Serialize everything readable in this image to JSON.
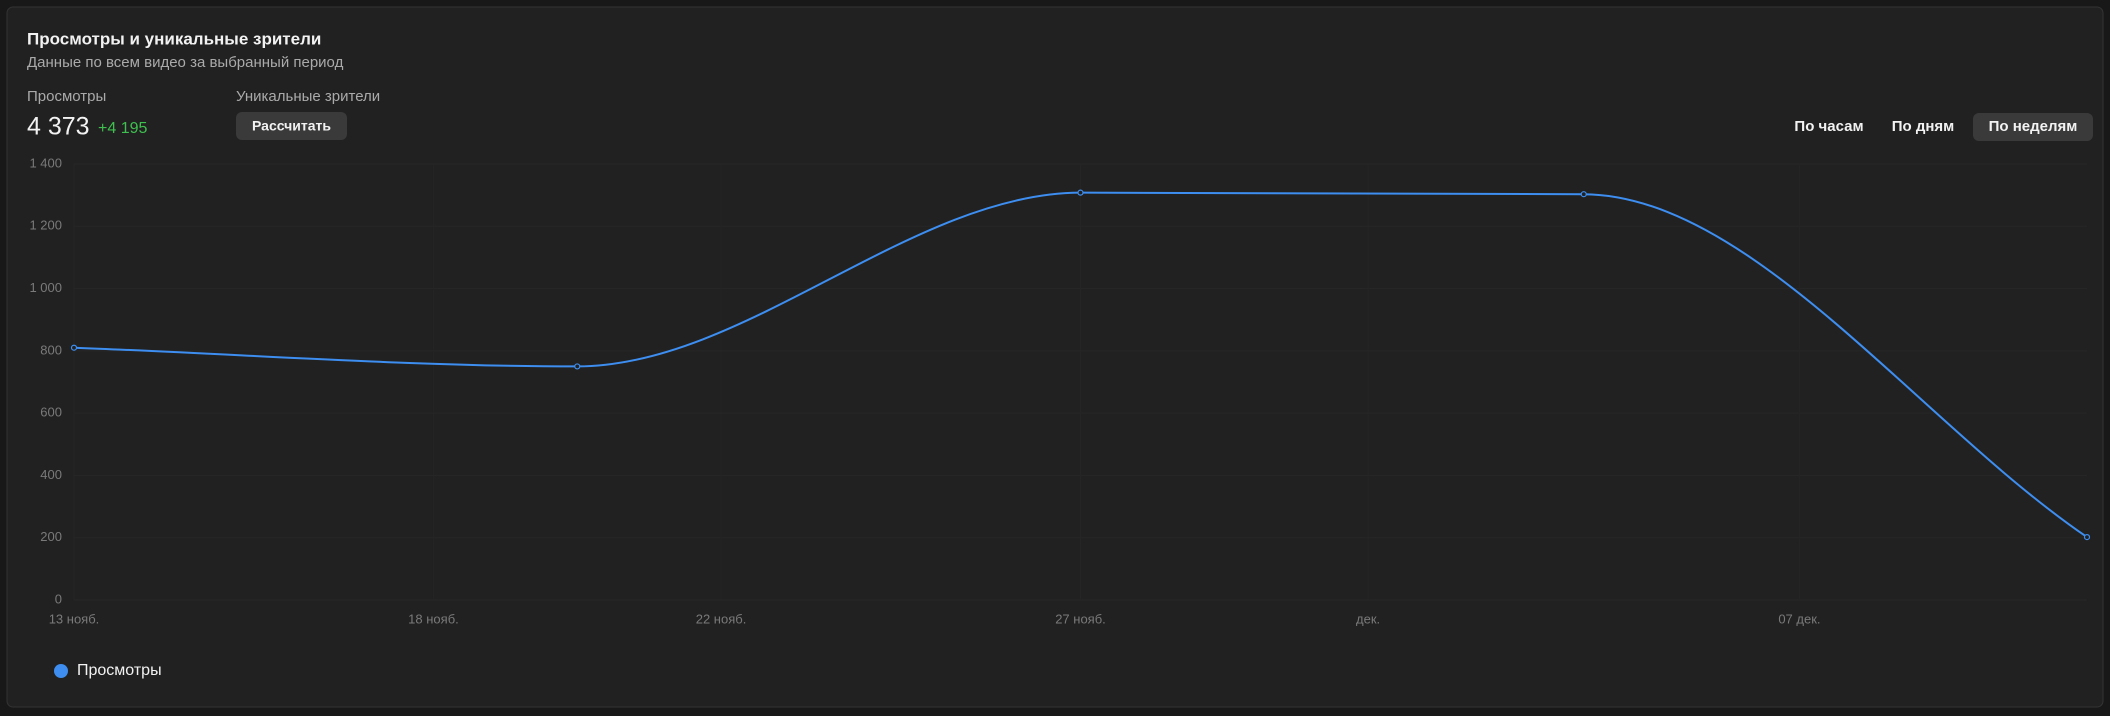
{
  "header": {
    "title": "Просмотры и уникальные зрители",
    "subtitle": "Данные по всем видео за выбранный период",
    "views_label": "Просмотры",
    "views_total": "4 373",
    "views_delta": "+4 195",
    "unique_label": "Уникальные зрители",
    "calc_button": "Рассчитать",
    "tabs": [
      "По часам",
      "По дням",
      "По неделям"
    ]
  },
  "chart_data": {
    "type": "line",
    "x": [
      0,
      7,
      14,
      21,
      28
    ],
    "xlim": [
      0,
      28
    ],
    "xticks": [
      {
        "value": 0,
        "label": "13 нояб."
      },
      {
        "value": 5,
        "label": "18 нояб."
      },
      {
        "value": 9,
        "label": "22 нояб."
      },
      {
        "value": 14,
        "label": "27 нояб."
      },
      {
        "value": 18,
        "label": "дек."
      },
      {
        "value": 24,
        "label": "07 дек."
      }
    ],
    "ylim": [
      0,
      1400
    ],
    "yticks": [
      0,
      200,
      400,
      600,
      800,
      {
        "value": 1000,
        "label": "1 000"
      },
      {
        "value": 1200,
        "label": "1 200"
      },
      {
        "value": 1400,
        "label": "1 400"
      }
    ],
    "grid": true,
    "series": [
      {
        "name": "Просмотры",
        "color": "#3d8ef0",
        "values": [
          810,
          750,
          1308,
          1303,
          202
        ]
      }
    ]
  }
}
